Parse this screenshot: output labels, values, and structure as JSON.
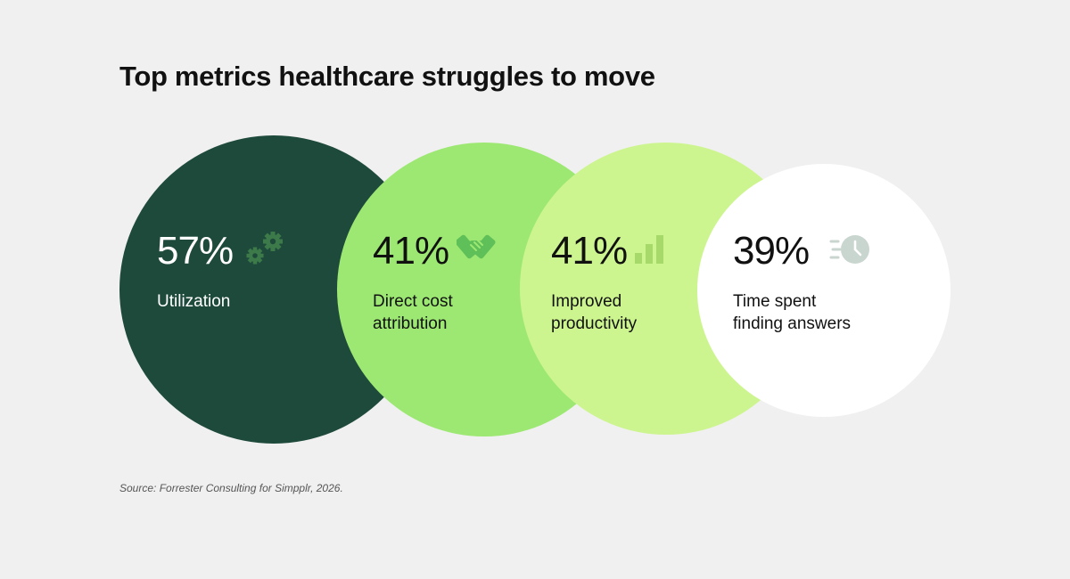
{
  "title": "Top metrics healthcare struggles to move",
  "chart_data": {
    "type": "bubble",
    "title": "Top metrics healthcare struggles to move",
    "categories": [
      "Utilization",
      "Direct cost attribution",
      "Improved productivity",
      "Time spent finding answers"
    ],
    "values": [
      57,
      41,
      41,
      39
    ],
    "unit": "%"
  },
  "metrics": [
    {
      "value_text": "57%",
      "label_line1": "Utilization",
      "label_line2": "",
      "icon": "gears-icon",
      "circle_color": "#1e4a3c",
      "text_color": "#ffffff",
      "icon_color": "#3d7a4a"
    },
    {
      "value_text": "41%",
      "label_line1": "Direct cost",
      "label_line2": "attribution",
      "icon": "handshake-icon",
      "circle_color": "#9de872",
      "text_color": "#111111",
      "icon_color": "#5fbf58"
    },
    {
      "value_text": "41%",
      "label_line1": "Improved",
      "label_line2": "productivity",
      "icon": "bar-chart-icon",
      "circle_color": "#cdf58f",
      "text_color": "#111111",
      "icon_color": "#a6d96a"
    },
    {
      "value_text": "39%",
      "label_line1": "Time spent",
      "label_line2": "finding answers",
      "icon": "fast-clock-icon",
      "circle_color": "#ffffff",
      "text_color": "#111111",
      "icon_color": "#c9d6cf"
    }
  ],
  "source": "Source: Forrester Consulting for Simpplr, 2026."
}
